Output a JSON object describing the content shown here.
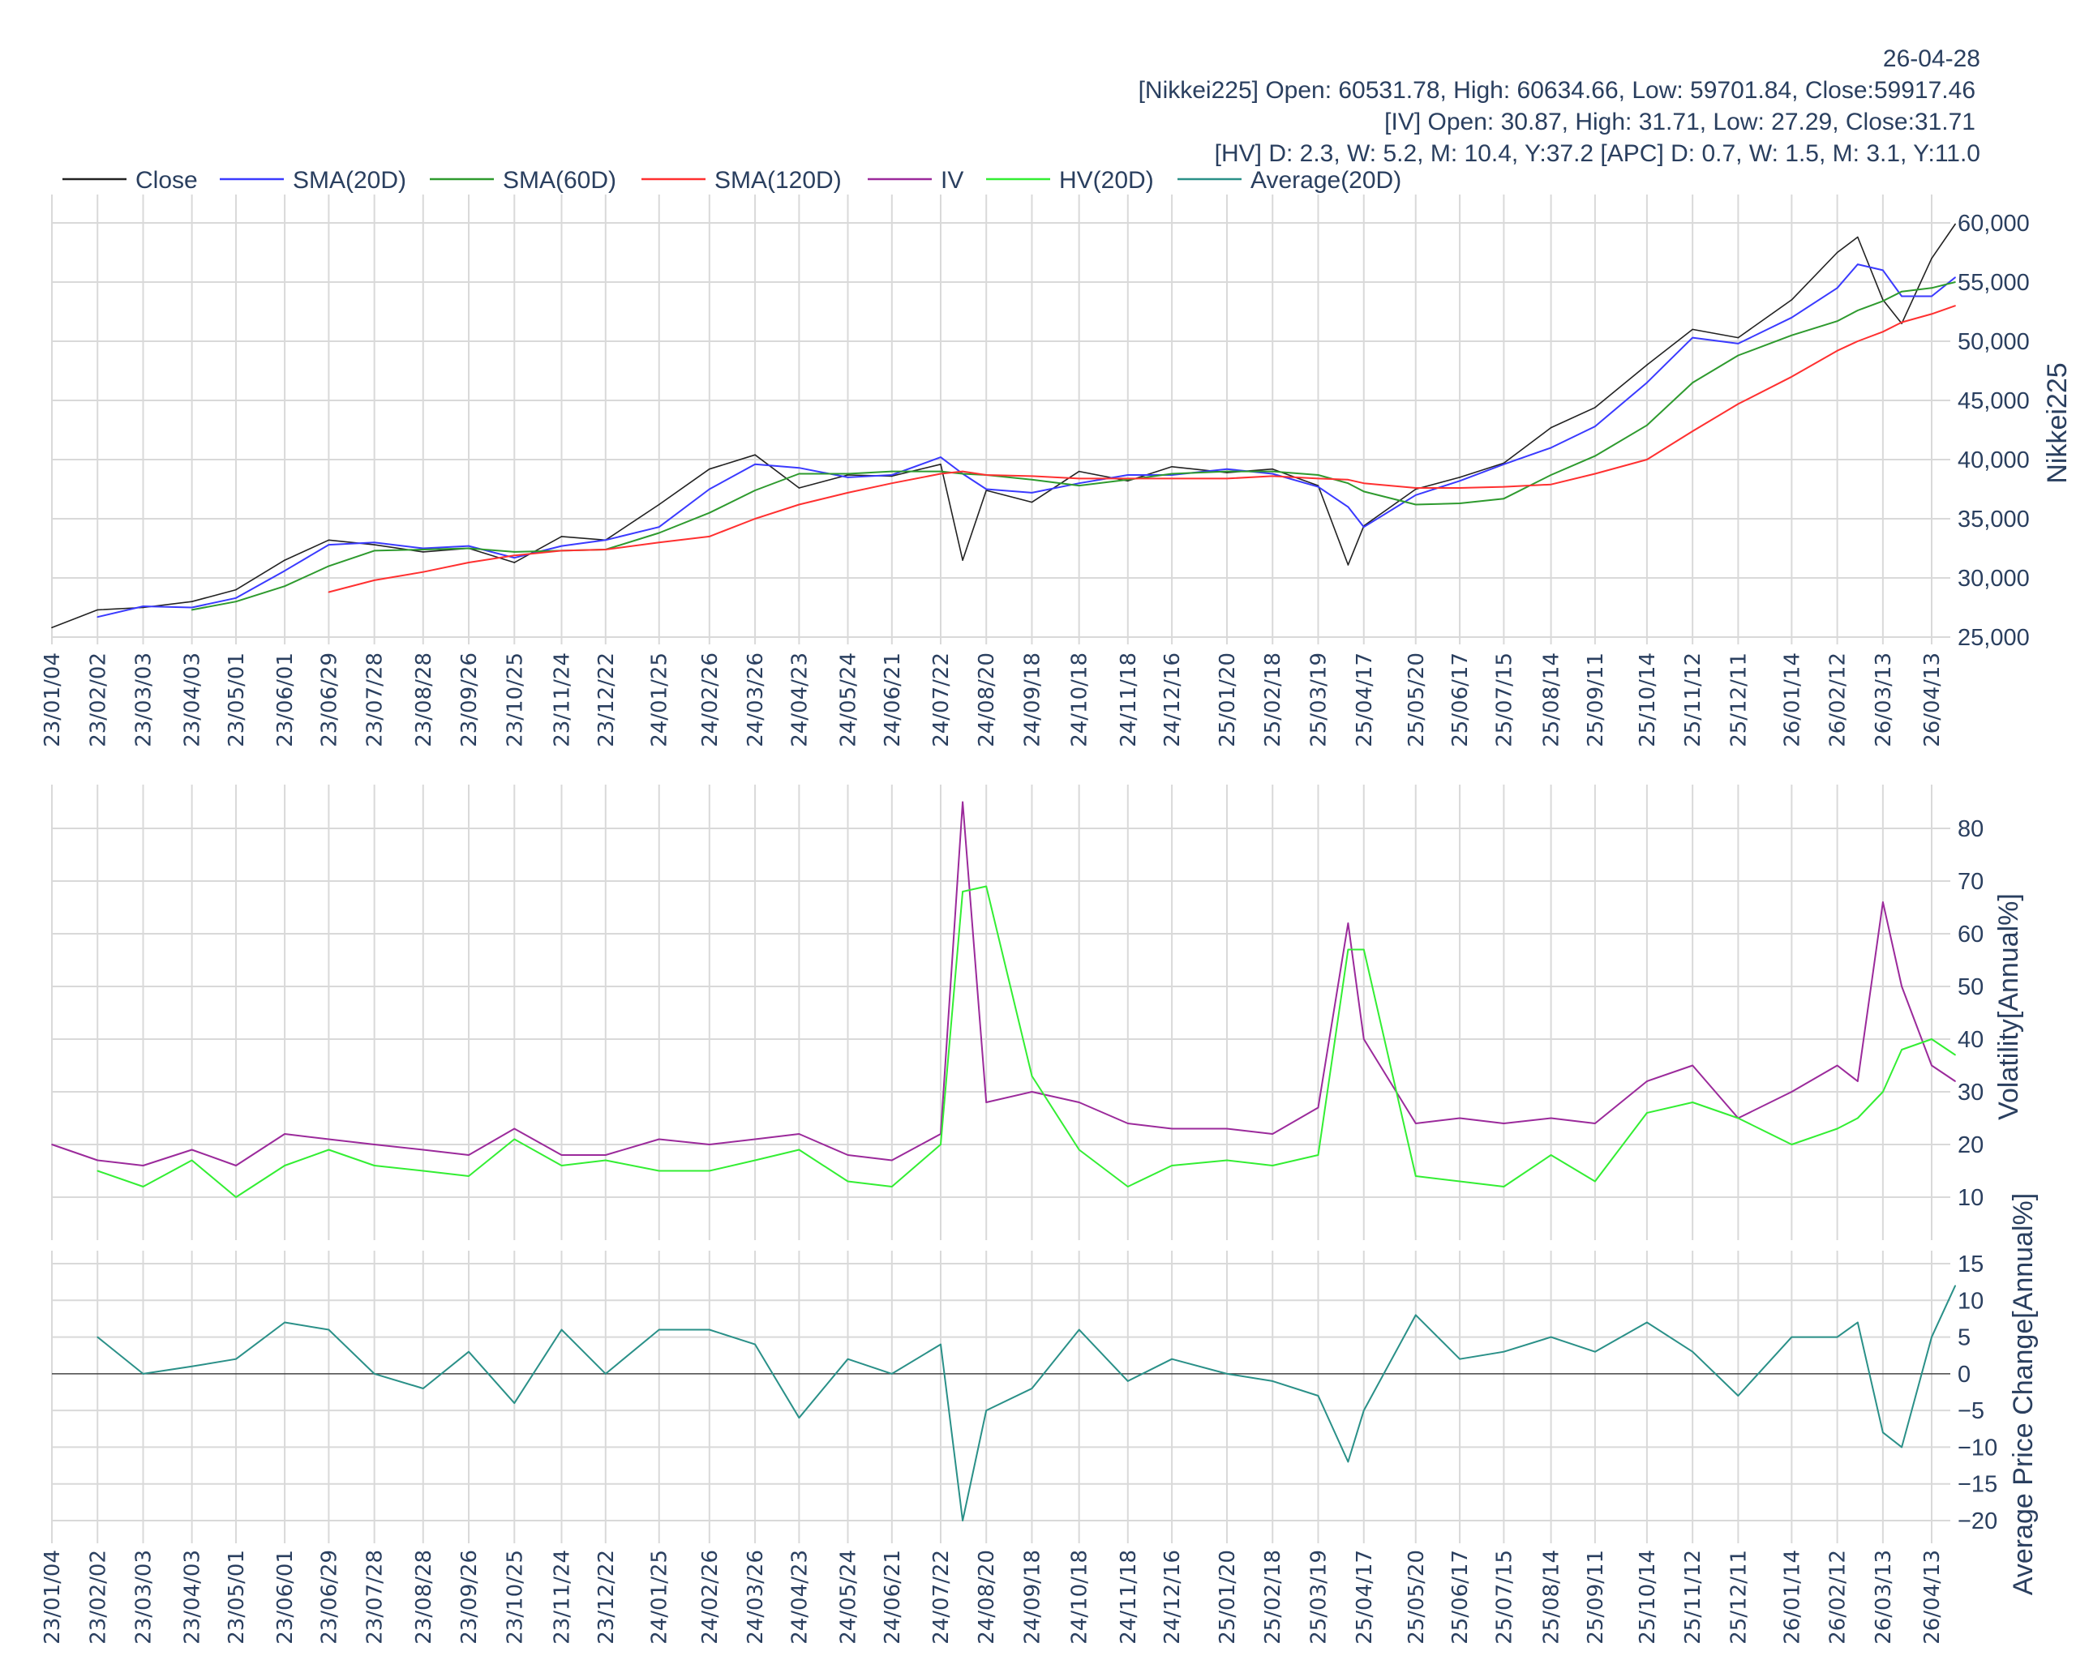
{
  "header": {
    "date": "26-04-28",
    "nikkei_line": "[Nikkei225] Open: 60531.78, High: 60634.66, Low: 59701.84, Close:59917.46",
    "iv_line": "[IV] Open: 30.87, High: 31.71, Low: 27.29, Close:31.71",
    "hv_apc_line": "[HV] D: 2.3, W: 5.2, M: 10.4, Y:37.2 [APC] D: 0.7, W: 1.5, M: 3.1, Y:11.0"
  },
  "legend": [
    {
      "name": "Close",
      "color": "#222222"
    },
    {
      "name": "SMA(20D)",
      "color": "#3a3aff"
    },
    {
      "name": "SMA(60D)",
      "color": "#2e9a2e"
    },
    {
      "name": "SMA(120D)",
      "color": "#ff3030"
    },
    {
      "name": "IV",
      "color": "#9b2a9b"
    },
    {
      "name": "HV(20D)",
      "color": "#33ee33"
    },
    {
      "name": "Average(20D)",
      "color": "#2a9088"
    }
  ],
  "chart_data": [
    {
      "type": "line",
      "ylabel": "Nikkei225",
      "ylim": [
        25000,
        60000
      ],
      "yticks": [
        "25,000",
        "30,000",
        "35,000",
        "40,000",
        "45,000",
        "50,000",
        "55,000",
        "60,000"
      ],
      "ytick_values": [
        25000,
        30000,
        35000,
        40000,
        45000,
        50000,
        55000,
        60000
      ],
      "xticks": [
        "23/01/04",
        "23/02/02",
        "23/03/03",
        "23/04/03",
        "23/05/01",
        "23/06/01",
        "23/06/29",
        "23/07/28",
        "23/08/28",
        "23/09/26",
        "23/10/25",
        "23/11/24",
        "23/12/22",
        "24/01/25",
        "24/02/26",
        "24/03/26",
        "24/04/23",
        "24/05/24",
        "24/06/21",
        "24/07/22",
        "24/08/20",
        "24/09/18",
        "24/10/18",
        "24/11/18",
        "24/12/16",
        "25/01/20",
        "25/02/18",
        "25/03/19",
        "25/04/17",
        "25/05/20",
        "25/06/17",
        "25/07/15",
        "25/08/14",
        "25/09/11",
        "25/10/14",
        "25/11/12",
        "25/12/11",
        "26/01/14",
        "26/02/12",
        "26/03/13",
        "26/04/13"
      ],
      "grid": true,
      "legend": "top-left",
      "x": [
        "23/01/04",
        "23/02/02",
        "23/03/03",
        "23/04/03",
        "23/05/01",
        "23/06/01",
        "23/06/29",
        "23/07/28",
        "23/08/28",
        "23/09/26",
        "23/10/25",
        "23/11/24",
        "23/12/22",
        "24/01/25",
        "24/02/26",
        "24/03/26",
        "24/04/23",
        "24/05/24",
        "24/06/21",
        "24/07/22",
        "24/08/05",
        "24/08/20",
        "24/09/18",
        "24/10/18",
        "24/11/18",
        "24/12/16",
        "25/01/20",
        "25/02/18",
        "25/03/19",
        "25/04/07",
        "25/04/17",
        "25/05/20",
        "25/06/17",
        "25/07/15",
        "25/08/14",
        "25/09/11",
        "25/10/14",
        "25/11/12",
        "25/12/11",
        "26/01/14",
        "26/02/12",
        "26/02/25",
        "26/03/13",
        "26/03/25",
        "26/04/13",
        "26/04/28"
      ],
      "series": [
        {
          "name": "Close",
          "values": [
            25800,
            27300,
            27500,
            28000,
            29000,
            31500,
            33200,
            32800,
            32200,
            32500,
            31300,
            33500,
            33200,
            36200,
            39200,
            40400,
            37600,
            38700,
            38600,
            39600,
            31500,
            37400,
            36400,
            39000,
            38200,
            39400,
            38900,
            39200,
            37800,
            31100,
            34400,
            37500,
            38500,
            39700,
            42700,
            44400,
            48000,
            51000,
            50300,
            53500,
            57500,
            58800,
            53500,
            51500,
            57000,
            59900
          ]
        },
        {
          "name": "SMA(20D)",
          "values": [
            null,
            26700,
            27600,
            27500,
            28300,
            30600,
            32800,
            33000,
            32500,
            32700,
            31700,
            32700,
            33200,
            34300,
            37500,
            39600,
            39300,
            38500,
            38700,
            40200,
            38800,
            37500,
            37200,
            38000,
            38700,
            38700,
            39200,
            38800,
            37700,
            36000,
            34300,
            37000,
            38200,
            39600,
            41000,
            42800,
            46500,
            50300,
            49800,
            52000,
            54500,
            56500,
            56000,
            53800,
            53800,
            55400
          ]
        },
        {
          "name": "SMA(60D)",
          "values": [
            null,
            null,
            null,
            27300,
            28000,
            29300,
            31000,
            32300,
            32400,
            32500,
            32200,
            32300,
            32400,
            33800,
            35500,
            37400,
            38800,
            38800,
            39000,
            39000,
            38800,
            38700,
            38300,
            37800,
            38300,
            38800,
            39000,
            39000,
            38700,
            38000,
            37300,
            36200,
            36300,
            36700,
            38700,
            40300,
            42900,
            46500,
            48800,
            50500,
            51700,
            52600,
            53400,
            54200,
            54500,
            55000
          ]
        },
        {
          "name": "SMA(120D)",
          "values": [
            null,
            null,
            null,
            null,
            null,
            null,
            28800,
            29800,
            30500,
            31300,
            31900,
            32300,
            32400,
            33000,
            33500,
            35000,
            36200,
            37200,
            38000,
            38800,
            39000,
            38700,
            38600,
            38400,
            38400,
            38400,
            38400,
            38600,
            38400,
            38300,
            38000,
            37600,
            37600,
            37700,
            37900,
            38800,
            40000,
            42400,
            44700,
            47000,
            49200,
            50000,
            50800,
            51600,
            52300,
            53000
          ]
        }
      ]
    },
    {
      "type": "line",
      "ylabel": "Volatility[Annual%]",
      "ylim": [
        5,
        85
      ],
      "yticks": [
        "10",
        "20",
        "30",
        "40",
        "50",
        "60",
        "70",
        "80"
      ],
      "ytick_values": [
        10,
        20,
        30,
        40,
        50,
        60,
        70,
        80
      ],
      "grid": true,
      "x_ref": "same as Nikkei225 panel",
      "series": [
        {
          "name": "IV",
          "values": [
            20,
            17,
            16,
            19,
            16,
            22,
            21,
            20,
            19,
            18,
            23,
            18,
            18,
            21,
            20,
            21,
            22,
            18,
            17,
            22,
            85,
            28,
            30,
            28,
            24,
            23,
            23,
            22,
            27,
            62,
            40,
            24,
            25,
            24,
            25,
            24,
            32,
            35,
            25,
            30,
            35,
            32,
            66,
            50,
            35,
            32
          ]
        },
        {
          "name": "HV(20D)",
          "values": [
            null,
            15,
            12,
            17,
            10,
            16,
            19,
            16,
            15,
            14,
            21,
            16,
            17,
            15,
            15,
            17,
            19,
            13,
            12,
            20,
            68,
            69,
            33,
            19,
            12,
            16,
            17,
            16,
            18,
            57,
            57,
            14,
            13,
            12,
            18,
            13,
            26,
            28,
            25,
            20,
            23,
            25,
            30,
            38,
            40,
            37
          ]
        }
      ]
    },
    {
      "type": "line",
      "ylabel": "Average Price Change[Annual%]",
      "ylim": [
        -22,
        17
      ],
      "yticks": [
        "−20",
        "−15",
        "−10",
        "−5",
        "0",
        "5",
        "10",
        "15"
      ],
      "ytick_values": [
        -20,
        -15,
        -10,
        -5,
        0,
        5,
        10,
        15
      ],
      "grid": true,
      "series": [
        {
          "name": "Average(20D)",
          "values": [
            null,
            5,
            0,
            1,
            2,
            7,
            6,
            0,
            -2,
            3,
            -4,
            6,
            0,
            6,
            6,
            4,
            -6,
            2,
            0,
            4,
            -20,
            -5,
            -2,
            6,
            -1,
            2,
            0,
            -1,
            -3,
            -12,
            -5,
            8,
            2,
            3,
            5,
            3,
            7,
            3,
            -3,
            5,
            5,
            7,
            -8,
            -10,
            5,
            12
          ]
        }
      ]
    }
  ]
}
